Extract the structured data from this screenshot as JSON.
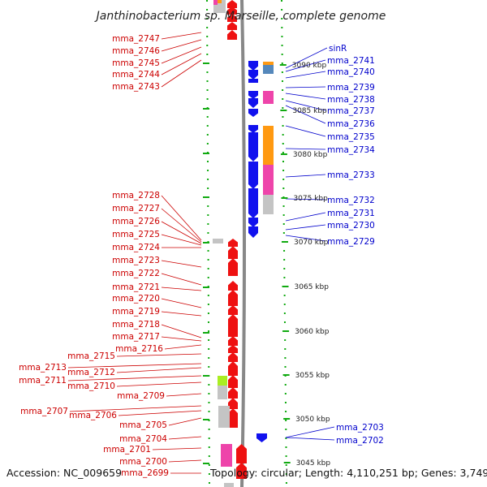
{
  "title": "Janthinobacterium sp. Marseille, complete genome",
  "footer": {
    "accession": "Accession: NC_009659",
    "topology": "Topology: circular; Length: 4,110,251 bp; Genes: 3,749"
  },
  "colors": {
    "forward_gene": "#ee1111",
    "reverse_gene": "#1111ee",
    "left_label": "#cc0000",
    "right_label": "#0000cc",
    "scale_ticks": "#11aa11",
    "backbone": "#888888",
    "pink": "#ee44aa",
    "orange": "#ff9911",
    "lightgray": "#c4c4c4",
    "steelblue": "#5588bb",
    "lime": "#aaee22"
  },
  "scale_labels": [
    "3090 kbp",
    "3085 kbp",
    "3080 kbp",
    "3075 kbp",
    "3070 kbp",
    "3065 kbp",
    "3060 kbp",
    "3055 kbp",
    "3050 kbp",
    "3045 kbp"
  ],
  "left_labels": [
    "mma_2747",
    "mma_2746",
    "mma_2745",
    "mma_2744",
    "mma_2743",
    "mma_2728",
    "mma_2727",
    "mma_2726",
    "mma_2725",
    "mma_2724",
    "mma_2723",
    "mma_2722",
    "mma_2721",
    "mma_2720",
    "mma_2719",
    "mma_2718",
    "mma_2717",
    "mma_2716",
    "mma_2715",
    "mma_2713",
    "mma_2712",
    "mma_2711",
    "mma_2710",
    "mma_2709",
    "mma_2707",
    "mma_2706",
    "mma_2705",
    "mma_2704",
    "mma_2701",
    "mma_2700",
    "mma_2699"
  ],
  "right_labels": [
    "sinR",
    "mma_2741",
    "mma_2740",
    "mma_2739",
    "mma_2738",
    "mma_2737",
    "mma_2736",
    "mma_2735",
    "mma_2734",
    "mma_2733",
    "mma_2732",
    "mma_2731",
    "mma_2730",
    "mma_2729",
    "mma_2703",
    "mma_2702"
  ]
}
